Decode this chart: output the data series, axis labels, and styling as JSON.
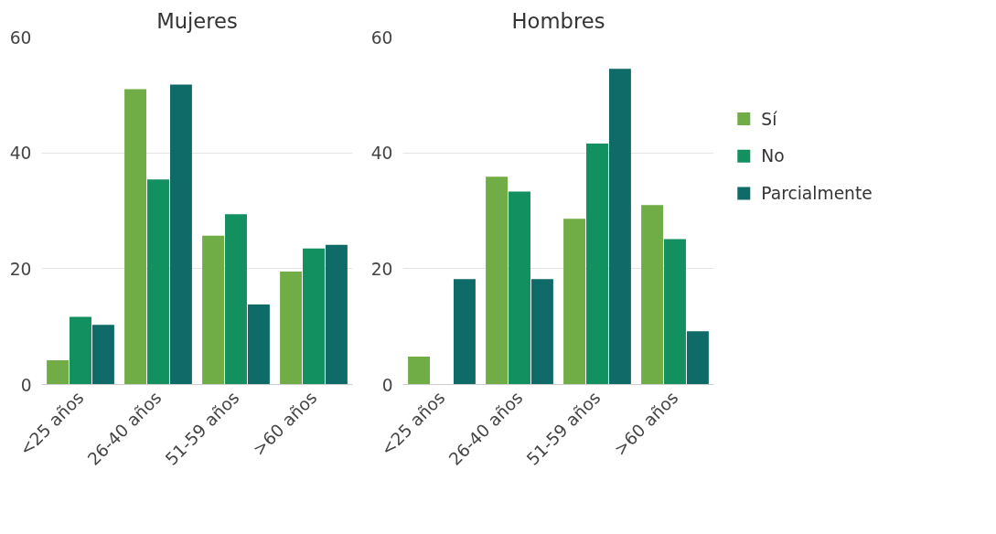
{
  "chart_data": [
    {
      "type": "bar",
      "title": "Mujeres",
      "categories": [
        "<25 años",
        "26-40 años",
        "51-59 años",
        ">60 años"
      ],
      "series": [
        {
          "color": "#70ad47",
          "values": [
            4.2,
            51,
            25.7,
            19.5
          ]
        },
        {
          "color": "#12905f",
          "values": [
            11.7,
            35.4,
            29.4,
            23.5
          ]
        },
        {
          "color": "#0f6b68",
          "values": [
            10.3,
            51.8,
            13.8,
            24.1
          ]
        }
      ],
      "ylim": [
        0,
        60
      ],
      "yticks": [
        0,
        20,
        40,
        60
      ],
      "grid": "y"
    },
    {
      "type": "bar",
      "title": "Hombres",
      "categories": [
        "<25 años",
        "26-40 años",
        "51-59 años",
        ">60 años"
      ],
      "series": [
        {
          "name": "Sí",
          "color": "#70ad47",
          "values": [
            4.8,
            35.9,
            28.6,
            31.0
          ]
        },
        {
          "name": "No",
          "color": "#12905f",
          "values": [
            0,
            33.3,
            41.6,
            25.1
          ]
        },
        {
          "name": "Parcialmente",
          "color": "#0f6b68",
          "values": [
            18.2,
            18.2,
            54.5,
            9.2
          ]
        }
      ],
      "ylim": [
        0,
        60
      ],
      "yticks": [
        0,
        20,
        40,
        60
      ],
      "grid": "y",
      "legend": "right"
    }
  ]
}
